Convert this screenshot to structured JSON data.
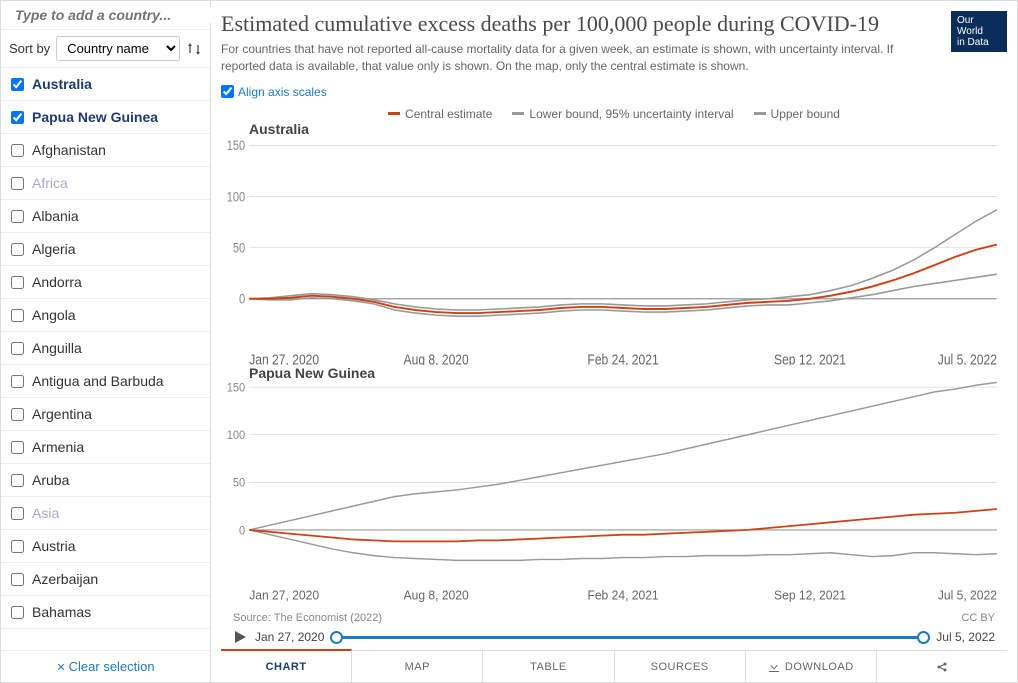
{
  "sidebar": {
    "search_placeholder": "Type to add a country...",
    "sort_label": "Sort by",
    "sort_value": "Country name",
    "clear_label": "Clear selection",
    "countries": [
      {
        "label": "Australia",
        "checked": true,
        "selected": true
      },
      {
        "label": "Papua New Guinea",
        "checked": true,
        "selected": true
      },
      {
        "label": "Afghanistan",
        "checked": false
      },
      {
        "label": "Africa",
        "checked": false,
        "dimmed": true
      },
      {
        "label": "Albania",
        "checked": false
      },
      {
        "label": "Algeria",
        "checked": false
      },
      {
        "label": "Andorra",
        "checked": false
      },
      {
        "label": "Angola",
        "checked": false
      },
      {
        "label": "Anguilla",
        "checked": false
      },
      {
        "label": "Antigua and Barbuda",
        "checked": false
      },
      {
        "label": "Argentina",
        "checked": false
      },
      {
        "label": "Armenia",
        "checked": false
      },
      {
        "label": "Aruba",
        "checked": false
      },
      {
        "label": "Asia",
        "checked": false,
        "dimmed": true
      },
      {
        "label": "Austria",
        "checked": false
      },
      {
        "label": "Azerbaijan",
        "checked": false
      },
      {
        "label": "Bahamas",
        "checked": false
      }
    ]
  },
  "header": {
    "title": "Estimated cumulative excess deaths per 100,000 people during COVID-19",
    "subtitle": "For countries that have not reported all-cause mortality data for a given week, an estimate is shown, with uncertainty interval. If reported data is available, that value only is shown. On the map, only the central estimate is shown.",
    "logo_line1": "Our World",
    "logo_line2": "in Data"
  },
  "controls": {
    "align_label": "Align axis scales",
    "align_checked": true
  },
  "legend": {
    "items": [
      {
        "label": "Central estimate",
        "color": "#cd4315"
      },
      {
        "label": "Lower bound, 95% uncertainty interval",
        "color": "#999999"
      },
      {
        "label": "Upper bound",
        "color": "#999999"
      }
    ]
  },
  "colors": {
    "central": "#cd4315",
    "bound": "#999999",
    "grid": "#cccccc",
    "axis": "#888888"
  },
  "charts": [
    {
      "title": "Australia",
      "ylim": [
        -50,
        150
      ],
      "yticks": [
        0,
        50,
        100,
        150
      ],
      "xlabels": [
        "Jan 27, 2020",
        "Aug 8, 2020",
        "Feb 24, 2021",
        "Sep 12, 2021",
        "Jul 5, 2022"
      ],
      "series": {
        "central": [
          0,
          0,
          1,
          3,
          2,
          0,
          -3,
          -8,
          -11,
          -13,
          -14,
          -14,
          -13,
          -12,
          -11,
          -9,
          -8,
          -8,
          -9,
          -10,
          -10,
          -9,
          -8,
          -6,
          -4,
          -3,
          -2,
          0,
          3,
          7,
          12,
          18,
          25,
          33,
          41,
          48,
          53
        ],
        "upper": [
          0,
          1,
          3,
          5,
          4,
          2,
          -1,
          -5,
          -8,
          -10,
          -11,
          -11,
          -10,
          -9,
          -8,
          -6,
          -5,
          -5,
          -6,
          -7,
          -7,
          -6,
          -5,
          -3,
          -1,
          0,
          2,
          4,
          8,
          13,
          20,
          28,
          38,
          50,
          63,
          76,
          87
        ],
        "lower": [
          0,
          -1,
          -1,
          1,
          0,
          -2,
          -5,
          -11,
          -14,
          -16,
          -17,
          -17,
          -16,
          -15,
          -14,
          -12,
          -11,
          -11,
          -12,
          -13,
          -13,
          -12,
          -11,
          -9,
          -7,
          -6,
          -6,
          -4,
          -2,
          1,
          4,
          8,
          12,
          15,
          18,
          21,
          24
        ]
      }
    },
    {
      "title": "Papua New Guinea",
      "ylim": [
        -50,
        150
      ],
      "yticks": [
        0,
        50,
        100,
        150
      ],
      "xlabels": [
        "Jan 27, 2020",
        "Aug 8, 2020",
        "Feb 24, 2021",
        "Sep 12, 2021",
        "Jul 5, 2022"
      ],
      "series": {
        "central": [
          0,
          -2,
          -4,
          -6,
          -8,
          -10,
          -11,
          -12,
          -12,
          -12,
          -12,
          -11,
          -11,
          -10,
          -9,
          -8,
          -7,
          -6,
          -5,
          -5,
          -4,
          -3,
          -2,
          -1,
          0,
          2,
          4,
          6,
          8,
          10,
          12,
          14,
          16,
          17,
          18,
          20,
          22
        ],
        "upper": [
          0,
          5,
          10,
          15,
          20,
          25,
          30,
          35,
          38,
          40,
          42,
          45,
          48,
          52,
          56,
          60,
          64,
          68,
          72,
          76,
          80,
          85,
          90,
          95,
          100,
          105,
          110,
          115,
          120,
          125,
          130,
          135,
          140,
          145,
          148,
          152,
          155
        ],
        "lower": [
          0,
          -5,
          -10,
          -15,
          -20,
          -24,
          -27,
          -29,
          -30,
          -31,
          -32,
          -32,
          -32,
          -32,
          -31,
          -31,
          -30,
          -30,
          -29,
          -29,
          -28,
          -28,
          -27,
          -27,
          -27,
          -26,
          -26,
          -25,
          -24,
          -26,
          -28,
          -27,
          -24,
          -24,
          -25,
          -26,
          -25
        ]
      }
    }
  ],
  "timeline": {
    "start": "Jan 27, 2020",
    "end": "Jul 5, 2022"
  },
  "footer": {
    "source": "Source: The Economist (2022)",
    "license": "CC BY"
  },
  "tabs": [
    {
      "label": "CHART",
      "active": true
    },
    {
      "label": "MAP"
    },
    {
      "label": "TABLE"
    },
    {
      "label": "SOURCES"
    },
    {
      "label": "DOWNLOAD",
      "icon": "download"
    },
    {
      "label": "",
      "icon": "share"
    }
  ]
}
